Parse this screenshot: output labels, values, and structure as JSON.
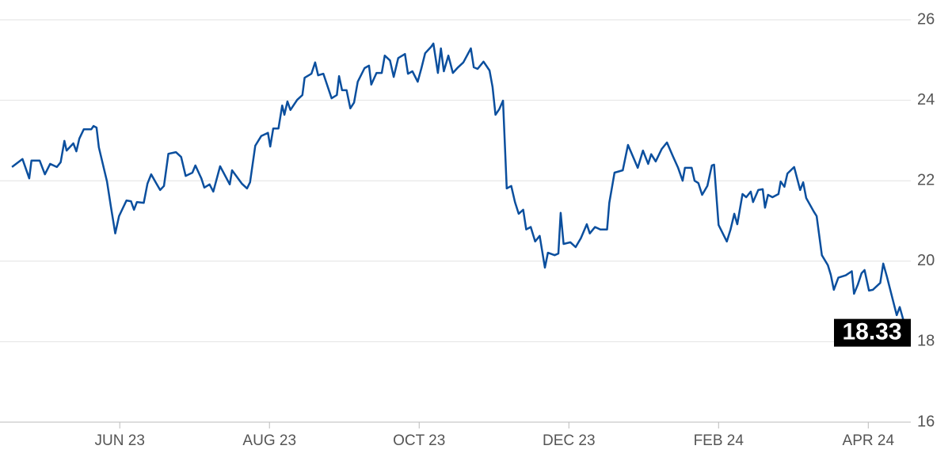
{
  "chart_data": {
    "type": "line",
    "color": "#0b4f9e",
    "grid": true,
    "x": [
      4.56,
      4.7,
      4.79,
      4.82,
      4.93,
      5.0,
      5.07,
      5.16,
      5.21,
      5.26,
      5.29,
      5.38,
      5.42,
      5.46,
      5.52,
      5.62,
      5.65,
      5.69,
      5.72,
      5.83,
      5.88,
      5.94,
      5.99,
      6.09,
      6.15,
      6.19,
      6.23,
      6.32,
      6.37,
      6.42,
      6.48,
      6.54,
      6.59,
      6.65,
      6.75,
      6.82,
      6.88,
      6.97,
      7.01,
      7.09,
      7.13,
      7.2,
      7.25,
      7.34,
      7.47,
      7.5,
      7.63,
      7.7,
      7.74,
      7.81,
      7.89,
      7.98,
      8.01,
      8.05,
      8.12,
      8.17,
      8.2,
      8.24,
      8.28,
      8.37,
      8.44,
      8.47,
      8.56,
      8.61,
      8.65,
      8.72,
      8.78,
      8.83,
      8.9,
      8.93,
      8.97,
      9.03,
      9.08,
      9.13,
      9.18,
      9.27,
      9.33,
      9.36,
      9.43,
      9.5,
      9.54,
      9.61,
      9.66,
      9.72,
      9.81,
      9.85,
      9.91,
      9.98,
      10.03,
      10.08,
      10.16,
      10.19,
      10.25,
      10.29,
      10.33,
      10.39,
      10.45,
      10.52,
      10.59,
      10.69,
      10.73,
      10.78,
      10.86,
      10.94,
      10.98,
      11.02,
      11.07,
      11.12,
      11.17,
      11.23,
      11.28,
      11.33,
      11.39,
      11.43,
      11.49,
      11.55,
      11.61,
      11.68,
      11.72,
      11.81,
      11.86,
      11.89,
      11.93,
      12.02,
      12.09,
      12.16,
      12.24,
      12.28,
      12.35,
      12.42,
      12.51,
      12.54,
      12.61,
      12.72,
      12.79,
      12.87,
      12.92,
      12.99,
      13.06,
      13.1,
      13.16,
      13.24,
      13.31,
      13.39,
      13.46,
      13.52,
      13.55,
      13.64,
      13.68,
      13.73,
      13.78,
      13.85,
      13.91,
      13.94,
      14.0,
      14.11,
      14.16,
      14.21,
      14.25,
      14.32,
      14.37,
      14.43,
      14.46,
      14.53,
      14.59,
      14.62,
      14.66,
      14.72,
      14.8,
      14.83,
      14.88,
      14.92,
      15.01,
      15.09,
      15.13,
      15.17,
      15.27,
      15.31,
      15.38,
      15.46,
      15.5,
      15.54,
      15.6,
      15.7,
      15.78,
      15.81,
      15.86,
      15.91,
      15.95,
      16.01,
      16.06,
      16.16,
      16.2,
      16.25,
      16.38,
      16.42,
      16.5
    ],
    "values": [
      22.34,
      22.54,
      22.06,
      22.5,
      22.5,
      22.16,
      22.42,
      22.34,
      22.46,
      22.99,
      22.75,
      22.93,
      22.73,
      23.05,
      23.28,
      23.28,
      23.36,
      23.32,
      22.83,
      21.98,
      21.37,
      20.69,
      21.12,
      21.51,
      21.49,
      21.28,
      21.47,
      21.45,
      21.93,
      22.16,
      21.96,
      21.77,
      21.87,
      22.67,
      22.71,
      22.59,
      22.12,
      22.2,
      22.38,
      22.06,
      21.83,
      21.91,
      21.73,
      22.36,
      21.91,
      22.26,
      21.93,
      21.81,
      21.96,
      22.87,
      23.11,
      23.19,
      22.85,
      23.3,
      23.3,
      23.87,
      23.64,
      23.97,
      23.76,
      24.01,
      24.13,
      24.56,
      24.66,
      24.94,
      24.62,
      24.66,
      24.33,
      24.05,
      24.13,
      24.6,
      24.25,
      24.25,
      23.8,
      23.94,
      24.46,
      24.8,
      24.86,
      24.39,
      24.68,
      24.68,
      25.11,
      24.99,
      24.58,
      25.05,
      25.15,
      24.66,
      24.72,
      24.46,
      24.8,
      25.17,
      25.33,
      25.41,
      24.68,
      25.29,
      24.72,
      25.11,
      24.68,
      24.82,
      24.94,
      25.29,
      24.82,
      24.78,
      24.96,
      24.74,
      24.33,
      23.64,
      23.78,
      23.99,
      21.81,
      21.87,
      21.47,
      21.18,
      21.28,
      20.79,
      20.85,
      20.49,
      20.63,
      19.84,
      20.21,
      20.15,
      20.19,
      21.2,
      20.43,
      20.47,
      20.35,
      20.57,
      20.92,
      20.69,
      20.85,
      20.79,
      20.79,
      21.45,
      22.2,
      22.26,
      22.89,
      22.54,
      22.32,
      22.75,
      22.42,
      22.66,
      22.48,
      22.79,
      22.95,
      22.61,
      22.32,
      22.0,
      22.32,
      22.32,
      22.0,
      21.94,
      21.65,
      21.87,
      22.38,
      22.4,
      20.9,
      20.49,
      20.79,
      21.18,
      20.92,
      21.67,
      21.59,
      21.73,
      21.47,
      21.77,
      21.79,
      21.33,
      21.65,
      21.59,
      21.67,
      21.98,
      21.85,
      22.18,
      22.34,
      21.77,
      21.96,
      21.57,
      21.24,
      21.12,
      20.15,
      19.9,
      19.66,
      19.29,
      19.59,
      19.65,
      19.75,
      19.19,
      19.42,
      19.7,
      19.78,
      19.27,
      19.29,
      19.46,
      19.94,
      19.61,
      18.66,
      18.86,
      18.33
    ],
    "xlim": [
      4.4,
      16.6
    ],
    "xticks": [
      {
        "value": 6,
        "label": "JUN 23"
      },
      {
        "value": 8,
        "label": "AUG 23"
      },
      {
        "value": 10,
        "label": "OCT 23"
      },
      {
        "value": 12,
        "label": "DEC 23"
      },
      {
        "value": 14,
        "label": "FEB 24"
      },
      {
        "value": 16,
        "label": "APR 24"
      }
    ],
    "ylim": [
      16,
      26
    ],
    "yticks": [
      16,
      18,
      20,
      22,
      24,
      26
    ]
  }
}
